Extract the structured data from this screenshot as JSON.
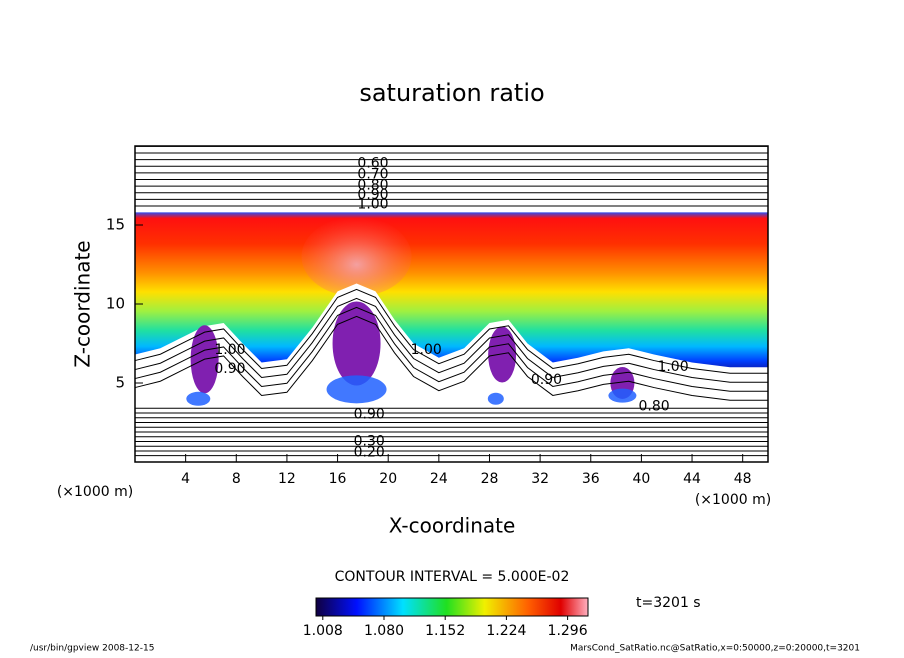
{
  "chart_data": {
    "type": "contour",
    "title": "saturation ratio",
    "x_label": "X-coordinate",
    "y_label": "Z-coordinate",
    "x_unit": "(×1000 m)",
    "y_unit": "(×1000 m)",
    "xlim": [
      0,
      50
    ],
    "ylim": [
      0,
      20
    ],
    "xticks": [
      4,
      8,
      12,
      16,
      20,
      24,
      28,
      32,
      36,
      40,
      44,
      48
    ],
    "yticks": [
      5,
      10,
      15
    ],
    "contour_labels": [
      "0.60",
      "0.70",
      "0.80",
      "0.90",
      "1.00",
      "1.00",
      "0.90",
      "1.00",
      "0.90",
      "1.00",
      "0.80",
      "0.90",
      "0.30",
      "0.20"
    ],
    "contour_interval": "CONTOUR INTERVAL = 5.000E-02",
    "colorbar_lim": [
      1.0,
      1.32
    ],
    "colorbar_ticks": [
      {
        "value": 1.008,
        "label": "1.008"
      },
      {
        "value": 1.08,
        "label": "1.080"
      },
      {
        "value": 1.152,
        "label": "1.152"
      },
      {
        "value": 1.224,
        "label": "1.224"
      },
      {
        "value": 1.296,
        "label": "1.296"
      }
    ],
    "time_label": "t=3201 s",
    "footer_left": "/usr/bin/gpview  2008-12-15",
    "footer_right": "MarsCond_SatRatio.nc@SatRatio,x=0:50000,z=0:20000,t=3201"
  }
}
